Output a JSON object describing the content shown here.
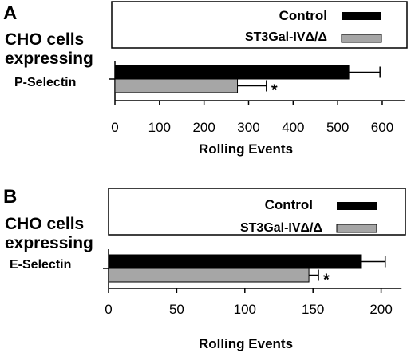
{
  "panels": [
    {
      "letter": "A",
      "group_label_lines": [
        "CHO cells",
        "expressing"
      ],
      "category": "P-Selectin",
      "legend": [
        "Control",
        "ST3Gal-IVΔ/Δ"
      ],
      "xlabel": "Rolling Events",
      "significance": "*"
    },
    {
      "letter": "B",
      "group_label_lines": [
        "CHO cells",
        "expressing"
      ],
      "category": "E-Selectin",
      "legend": [
        "Control",
        "ST3Gal-IVΔ/Δ"
      ],
      "xlabel": "Rolling Events",
      "significance": "*"
    }
  ],
  "colors": {
    "control": "#000000",
    "knockout": "#a6a6a6",
    "axis": "#000000"
  },
  "chart_data": [
    {
      "type": "bar",
      "orientation": "horizontal",
      "categories": [
        "P-Selectin"
      ],
      "series": [
        {
          "name": "Control",
          "values": [
            525
          ],
          "error": [
            70
          ]
        },
        {
          "name": "ST3Gal-IVΔ/Δ",
          "values": [
            275
          ],
          "error": [
            65
          ]
        }
      ],
      "xlabel": "Rolling Events",
      "xlim": [
        0,
        650
      ],
      "xticks": [
        0,
        100,
        200,
        300,
        400,
        500,
        600
      ],
      "annotations": [
        "*"
      ],
      "legend_position": "top-right"
    },
    {
      "type": "bar",
      "orientation": "horizontal",
      "categories": [
        "E-Selectin"
      ],
      "series": [
        {
          "name": "Control",
          "values": [
            185
          ],
          "error": [
            18
          ]
        },
        {
          "name": "ST3Gal-IVΔ/Δ",
          "values": [
            147
          ],
          "error": [
            7
          ]
        }
      ],
      "xlabel": "Rolling Events",
      "xlim": [
        0,
        215
      ],
      "xticks": [
        0,
        50,
        100,
        150,
        200
      ],
      "annotations": [
        "*"
      ],
      "legend_position": "top-right"
    }
  ]
}
